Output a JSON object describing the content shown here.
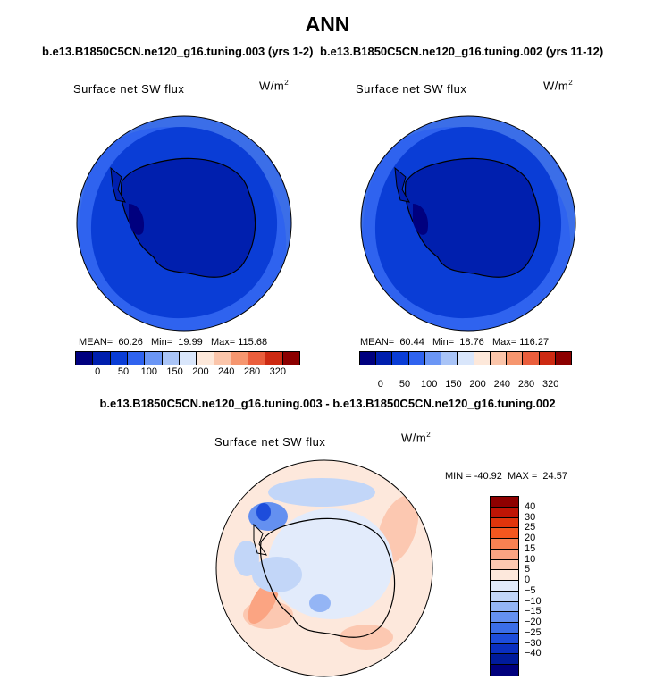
{
  "title": "ANN",
  "case_left": "b.e13.B1850C5CN.ne120_g16.tuning.003 (yrs 1-2)",
  "case_right": "b.e13.B1850C5CN.ne120_g16.tuning.002 (yrs 11-12)",
  "diff_title": "b.e13.B1850C5CN.ne120_g16.tuning.003 - b.e13.B1850C5CN.ne120_g16.tuning.002",
  "panel_title": "Surface net SW flux",
  "units_base": "W/m",
  "units_exp": "2",
  "left_stats": "MEAN=  60.26   Min=  19.99   Max= 115.68",
  "right_stats": "MEAN=  60.44   Min=  18.76   Max= 116.27",
  "diff_stats": "MIN = -40.92  MAX =  24.57",
  "abs_colorbar": {
    "labels": [
      "0",
      "50",
      "100",
      "150",
      "200",
      "240",
      "280",
      "320"
    ],
    "colors": [
      "#00007f",
      "#001fae",
      "#0a3dd6",
      "#2f63ef",
      "#6b96f5",
      "#a9c4f7",
      "#d9e6fb",
      "#fde8da",
      "#fbc5aa",
      "#f6966f",
      "#ea5e3c",
      "#cd2a12",
      "#8c0000"
    ]
  },
  "diff_colorbar": {
    "labels": [
      "40",
      "30",
      "25",
      "20",
      "15",
      "10",
      "5",
      "0",
      "−5",
      "−10",
      "−15",
      "−20",
      "−25",
      "−30",
      "−40"
    ],
    "colors": [
      "#8e0000",
      "#bf1505",
      "#e0350c",
      "#f4571f",
      "#f88152",
      "#fba482",
      "#fcc8b1",
      "#fde8dc",
      "#e2ebfb",
      "#c2d6f8",
      "#94b5f5",
      "#6490f0",
      "#3b6ee8",
      "#1d4ddb",
      "#0a2fbf",
      "#001b9b",
      "#00007d"
    ]
  }
}
